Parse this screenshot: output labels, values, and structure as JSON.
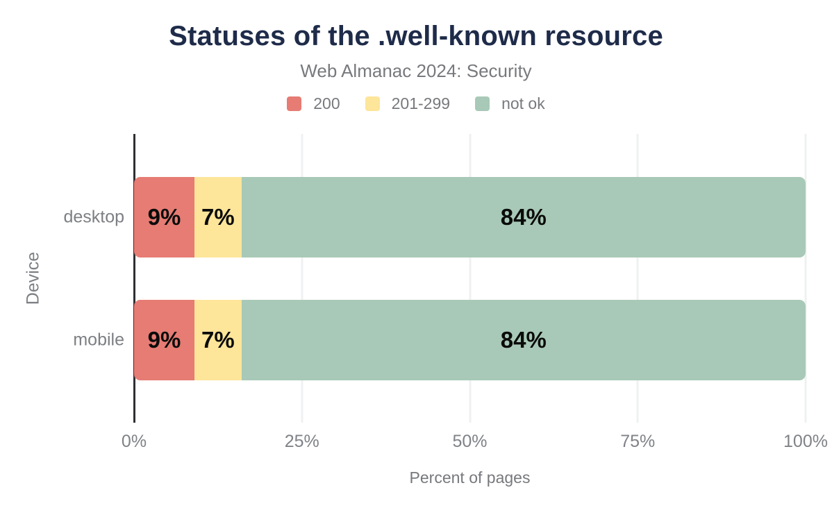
{
  "chart_data": {
    "type": "bar",
    "orientation": "horizontal",
    "stacked": true,
    "title": "Statuses of the .well-known resource",
    "subtitle": "Web Almanac 2024: Security",
    "categories": [
      "desktop",
      "mobile"
    ],
    "series": [
      {
        "name": "200",
        "color": "#e67c73",
        "values": [
          9,
          9
        ]
      },
      {
        "name": "201-299",
        "color": "#fde59a",
        "values": [
          7,
          7
        ]
      },
      {
        "name": "not ok",
        "color": "#a8c9b7",
        "values": [
          84,
          84
        ]
      }
    ],
    "value_labels": [
      [
        "9%",
        "7%",
        "84%"
      ],
      [
        "9%",
        "7%",
        "84%"
      ]
    ],
    "xlabel": "Percent of pages",
    "ylabel": "Device",
    "xlim": [
      0,
      100
    ],
    "x_ticks": [
      {
        "label": "0%",
        "value": 0
      },
      {
        "label": "25%",
        "value": 25
      },
      {
        "label": "50%",
        "value": 50
      },
      {
        "label": "75%",
        "value": 75
      },
      {
        "label": "100%",
        "value": 100
      }
    ],
    "grid": "vertical",
    "legend_position": "top",
    "colors": {
      "title": "#1e2b49",
      "muted_text": "#77797d",
      "tick_text": "#7f8287",
      "axis_line": "#2e2f33",
      "gridline": "#eff0f1",
      "value_label": "#0b0b0b",
      "background": "#ffffff"
    }
  }
}
